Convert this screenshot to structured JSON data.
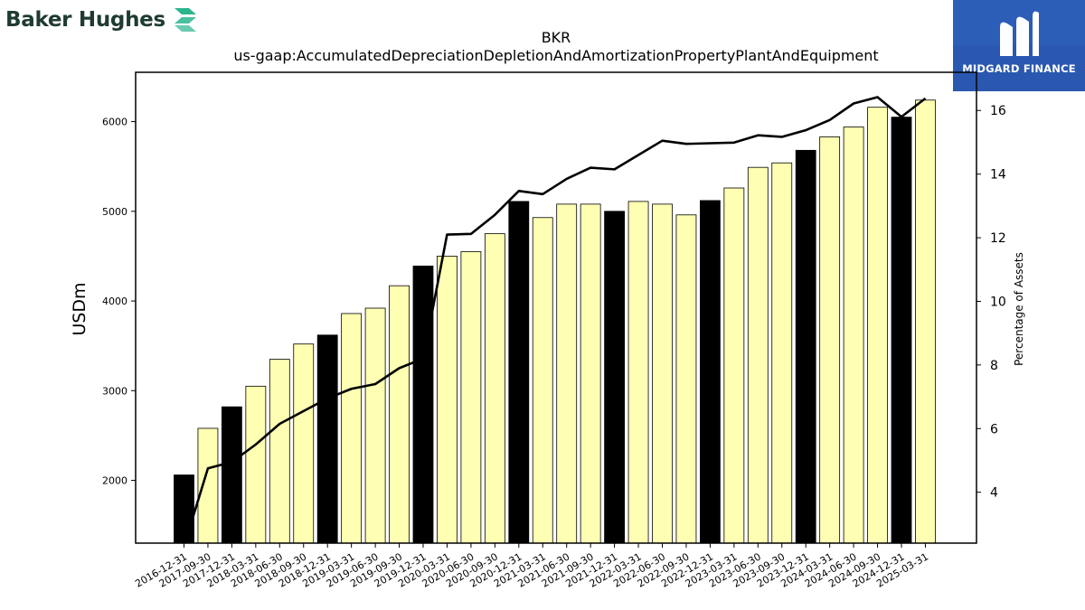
{
  "logos": {
    "left_wordmark": "Baker Hughes",
    "left_mark_icon": "baker-hughes-chevron-icon",
    "left_color": "#1f3b33",
    "left_mark_color": "#2bb58e",
    "right_brand": "MIDGARD FINANCE",
    "right_mark_icon": "midgard-m-icon",
    "right_bg": "#2a58b0"
  },
  "chart_data": {
    "type": "bar",
    "title": "BKR",
    "subtitle": "us-gaap:AccumulatedDepreciationDepletionAndAmortizationPropertyPlantAndEquipment",
    "ylabel": "USDm",
    "y2label": "Percentage of Assets",
    "ylim": [
      1300,
      6550
    ],
    "y2lim": [
      2.4,
      17.2
    ],
    "yticks": [
      2000,
      3000,
      4000,
      5000,
      6000
    ],
    "y2ticks": [
      4,
      6,
      8,
      10,
      12,
      14,
      16
    ],
    "grid": false,
    "categories": [
      "2016-12-31",
      "2017-09-30",
      "2017-12-31",
      "2018-03-31",
      "2018-06-30",
      "2018-09-30",
      "2018-12-31",
      "2019-03-31",
      "2019-06-30",
      "2019-09-30",
      "2019-12-31",
      "2020-03-31",
      "2020-06-30",
      "2020-09-30",
      "2020-12-31",
      "2021-03-31",
      "2021-06-30",
      "2021-09-30",
      "2021-12-31",
      "2022-03-31",
      "2022-06-30",
      "2022-09-30",
      "2022-12-31",
      "2023-03-31",
      "2023-06-30",
      "2023-09-30",
      "2023-12-31",
      "2024-03-31",
      "2024-06-30",
      "2024-09-30",
      "2024-12-31",
      "2025-03-31"
    ],
    "series": [
      {
        "kind": "bar",
        "axis": "left",
        "values": [
          2060,
          2580,
          2820,
          3050,
          3350,
          3520,
          3620,
          3860,
          3920,
          4170,
          4390,
          4500,
          4550,
          4750,
          5110,
          4930,
          5080,
          5080,
          5000,
          5110,
          5080,
          4960,
          5120,
          5260,
          5490,
          5540,
          5680,
          5830,
          5940,
          6160,
          6050,
          6240
        ],
        "highlight": [
          true,
          false,
          true,
          false,
          false,
          false,
          true,
          false,
          false,
          false,
          true,
          false,
          false,
          false,
          true,
          false,
          false,
          false,
          true,
          false,
          false,
          false,
          true,
          false,
          false,
          false,
          true,
          false,
          false,
          false,
          true,
          false
        ]
      },
      {
        "kind": "line",
        "axis": "right",
        "values": [
          2.3,
          4.75,
          4.95,
          5.5,
          6.15,
          6.55,
          6.95,
          7.25,
          7.4,
          7.9,
          8.2,
          12.1,
          12.12,
          12.72,
          13.47,
          13.37,
          13.85,
          14.2,
          14.15,
          14.6,
          15.05,
          14.95,
          14.97,
          14.99,
          15.22,
          15.17,
          15.38,
          15.7,
          16.22,
          16.42,
          15.8,
          16.38
        ]
      }
    ],
    "colors": {
      "bar_normal": "#ffffb3",
      "bar_highlight": "#000000",
      "bar_edge": "#000000",
      "line": "#000000"
    }
  }
}
